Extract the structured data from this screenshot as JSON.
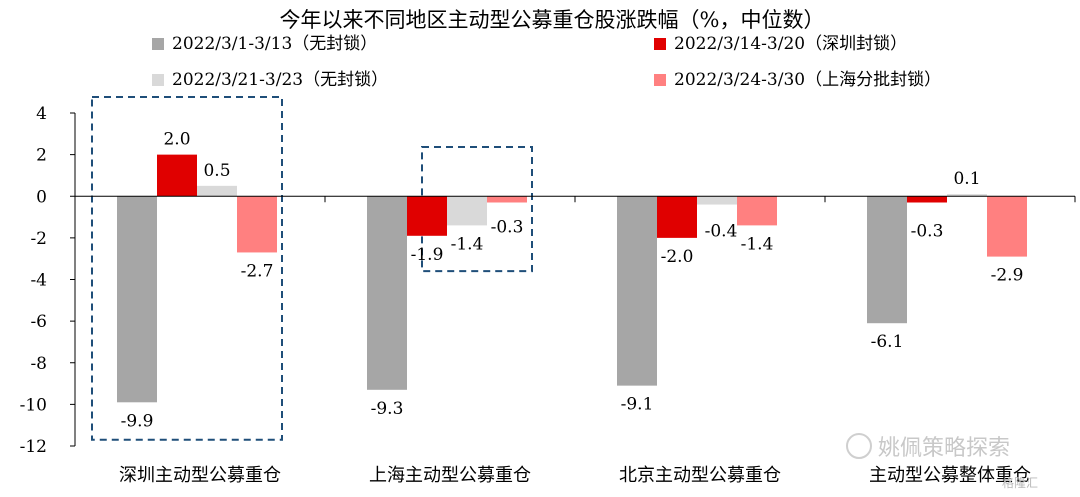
{
  "chart_data": {
    "type": "bar",
    "title": "今年以来不同地区主动型公募重仓股涨跌幅（%，中位数）",
    "categories": [
      "深圳主动型公募重仓",
      "上海主动型公募重仓",
      "北京主动型公募重仓",
      "主动型公募整体重仓"
    ],
    "series": [
      {
        "name": "2022/3/1-3/13（无封锁）",
        "color": "#a6a6a6",
        "values": [
          -9.9,
          -9.3,
          -9.1,
          -6.1
        ],
        "labels": [
          "-9.9",
          "-9.3",
          "-9.1",
          "-6.1"
        ]
      },
      {
        "name": "2022/3/14-3/20（深圳封锁）",
        "color": "#e00000",
        "values": [
          2.0,
          -1.9,
          -2.0,
          -0.3
        ],
        "labels": [
          "2.0",
          "-1.9",
          "-2.0",
          "-0.3"
        ]
      },
      {
        "name": "2022/3/21-3/23（无封锁）",
        "color": "#d9d9d9",
        "values": [
          0.5,
          -1.4,
          -0.4,
          0.1
        ],
        "labels": [
          "0.5",
          "-1.4",
          "-0.4",
          "0.1"
        ]
      },
      {
        "name": "2022/3/24-3/30（上海分批封锁）",
        "color": "#ff8080",
        "values": [
          -2.7,
          -0.3,
          -1.4,
          -2.9
        ],
        "labels": [
          "-2.7",
          "-0.3",
          "-1.4",
          "-2.9"
        ]
      }
    ],
    "ylim": [
      -12,
      4
    ],
    "yticks": [
      "4",
      "2",
      "0",
      "-2",
      "-4",
      "-6",
      "-8",
      "-10",
      "-12"
    ],
    "ytick_values": [
      4,
      2,
      0,
      -2,
      -4,
      -6,
      -8,
      -10,
      -12
    ],
    "grid": false,
    "legend_position": "top",
    "annotations": [
      {
        "type": "dashed-box",
        "color": "#1f4e79",
        "category_index": 0,
        "series_from": 0,
        "series_to": 3,
        "y_from": 4,
        "y_to": -11.7
      },
      {
        "type": "dashed-box",
        "color": "#1f4e79",
        "category_index": 1,
        "series_from": 2,
        "series_to": 3,
        "y_from": 1.6,
        "y_to": -3.6
      }
    ]
  },
  "watermark": {
    "text": "姚佩策略探索",
    "source": "格隆汇"
  }
}
